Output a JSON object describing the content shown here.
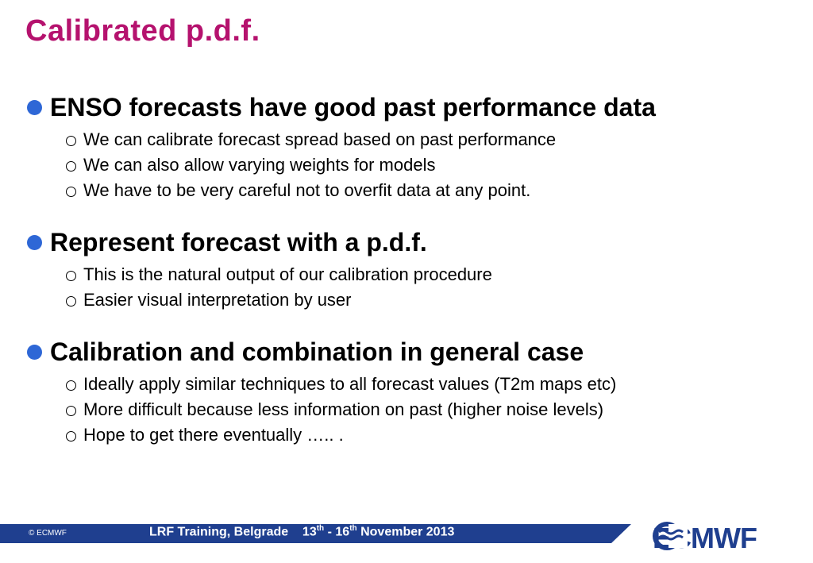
{
  "slide": {
    "title": "Calibrated p.d.f.",
    "sections": [
      {
        "heading": "ENSO forecasts have good past performance data",
        "items": [
          "We can calibrate forecast spread based on past performance",
          "We can also allow varying weights for models",
          "We have to be very careful not to overfit data at any point."
        ]
      },
      {
        "heading": "Represent forecast with a p.d.f.",
        "items": [
          "This is the natural output of our calibration procedure",
          "Easier visual interpretation by user"
        ]
      },
      {
        "heading": "Calibration and combination in general case",
        "items": [
          "Ideally apply similar techniques to all forecast values (T2m maps etc)",
          "More difficult because less information on past (higher noise levels)",
          "Hope to get there eventually ….. ."
        ]
      }
    ]
  },
  "footer": {
    "copyright": "© ECMWF",
    "event": "LRF Training, Belgrade",
    "date_start": "13",
    "date_start_sup": "th",
    "date_sep": " - 16",
    "date_end_sup": "th",
    "date_rest": " November 2013",
    "logo_text": "ECMWF"
  },
  "colors": {
    "title": "#b5126e",
    "bullet_dot": "#2e67d6",
    "footer_bar": "#1f3f8f",
    "logo": "#1f3f8f"
  }
}
